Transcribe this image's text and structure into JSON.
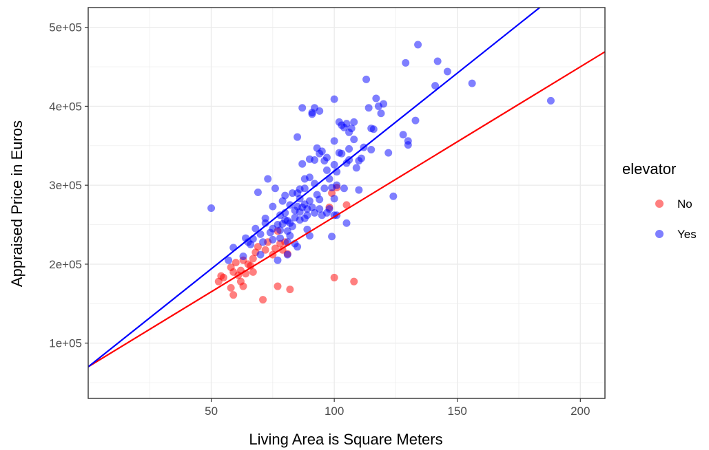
{
  "chart_data": {
    "type": "scatter",
    "title": "",
    "xlabel": "Living Area is Square Meters",
    "ylabel": "Appraised Price in Euros",
    "xlim": [
      0,
      210
    ],
    "ylim": [
      30000,
      525000
    ],
    "x_ticks": [
      50,
      100,
      150,
      200
    ],
    "x_tick_labels": [
      "50",
      "100",
      "150",
      "200"
    ],
    "x_minor_ticks": [
      25,
      75,
      125,
      175
    ],
    "y_ticks": [
      100000,
      200000,
      300000,
      400000,
      500000
    ],
    "y_tick_labels": [
      "1e+05",
      "2e+05",
      "3e+05",
      "4e+05",
      "5e+05"
    ],
    "y_minor_ticks": [
      50000,
      150000,
      250000,
      350000,
      450000
    ],
    "grid": true,
    "legend": {
      "title": "elevator",
      "position": "right",
      "entries": [
        {
          "label": "No",
          "color": "#ff0000"
        },
        {
          "label": "Yes",
          "color": "#0000ff"
        }
      ]
    },
    "series": [
      {
        "name": "No",
        "color": "#ff0000",
        "points": [
          [
            53,
            178000
          ],
          [
            54,
            185000
          ],
          [
            55,
            183000
          ],
          [
            58,
            170000
          ],
          [
            58,
            196000
          ],
          [
            59,
            161000
          ],
          [
            59,
            190000
          ],
          [
            60,
            202000
          ],
          [
            61,
            186000
          ],
          [
            62,
            192000
          ],
          [
            62,
            178000
          ],
          [
            63,
            172000
          ],
          [
            63,
            205000
          ],
          [
            64,
            188000
          ],
          [
            65,
            200000
          ],
          [
            66,
            198000
          ],
          [
            67,
            190000
          ],
          [
            67,
            207000
          ],
          [
            68,
            215000
          ],
          [
            69,
            222000
          ],
          [
            71,
            155000
          ],
          [
            72,
            218000
          ],
          [
            73,
            228000
          ],
          [
            75,
            212000
          ],
          [
            76,
            220000
          ],
          [
            77,
            172000
          ],
          [
            77,
            242000
          ],
          [
            78,
            226000
          ],
          [
            79,
            218000
          ],
          [
            80,
            228000
          ],
          [
            81,
            213000
          ],
          [
            82,
            168000
          ],
          [
            98,
            272000
          ],
          [
            99,
            290000
          ],
          [
            100,
            183000
          ],
          [
            101,
            297000
          ],
          [
            105,
            275000
          ],
          [
            108,
            178000
          ]
        ]
      },
      {
        "name": "Yes",
        "color": "#0000ff",
        "points": [
          [
            50,
            271000
          ],
          [
            57,
            205000
          ],
          [
            59,
            221000
          ],
          [
            63,
            210000
          ],
          [
            64,
            233000
          ],
          [
            65,
            228000
          ],
          [
            66,
            225000
          ],
          [
            67,
            232000
          ],
          [
            68,
            245000
          ],
          [
            69,
            291000
          ],
          [
            70,
            238000
          ],
          [
            70,
            212000
          ],
          [
            71,
            228000
          ],
          [
            72,
            252000
          ],
          [
            72,
            258000
          ],
          [
            73,
            308000
          ],
          [
            74,
            240000
          ],
          [
            75,
            231000
          ],
          [
            75,
            245000
          ],
          [
            75,
            273000
          ],
          [
            76,
            296000
          ],
          [
            77,
            205000
          ],
          [
            77,
            250000
          ],
          [
            78,
            243000
          ],
          [
            78,
            233000
          ],
          [
            78,
            262000
          ],
          [
            79,
            251000
          ],
          [
            79,
            280000
          ],
          [
            80,
            256000
          ],
          [
            80,
            265000
          ],
          [
            80,
            287000
          ],
          [
            81,
            242000
          ],
          [
            81,
            255000
          ],
          [
            81,
            212000
          ],
          [
            81,
            228000
          ],
          [
            82,
            275000
          ],
          [
            82,
            252000
          ],
          [
            82,
            236000
          ],
          [
            83,
            290000
          ],
          [
            83,
            248000
          ],
          [
            84,
            268000
          ],
          [
            84,
            259000
          ],
          [
            84,
            226000
          ],
          [
            85,
            273000
          ],
          [
            85,
            290000
          ],
          [
            85,
            222000
          ],
          [
            85,
            361000
          ],
          [
            86,
            256000
          ],
          [
            86,
            266000
          ],
          [
            86,
            283000
          ],
          [
            86,
            295000
          ],
          [
            87,
            272000
          ],
          [
            87,
            327000
          ],
          [
            87,
            398000
          ],
          [
            88,
            258000
          ],
          [
            88,
            276000
          ],
          [
            88,
            296000
          ],
          [
            88,
            308000
          ],
          [
            89,
            262000
          ],
          [
            89,
            244000
          ],
          [
            89,
            270000
          ],
          [
            90,
            236000
          ],
          [
            90,
            280000
          ],
          [
            90,
            310000
          ],
          [
            90,
            333000
          ],
          [
            91,
            390000
          ],
          [
            91,
            392000
          ],
          [
            91,
            272000
          ],
          [
            92,
            398000
          ],
          [
            92,
            265000
          ],
          [
            92,
            302000
          ],
          [
            92,
            332000
          ],
          [
            93,
            288000
          ],
          [
            93,
            347000
          ],
          [
            94,
            394000
          ],
          [
            94,
            340000
          ],
          [
            94,
            282000
          ],
          [
            94,
            270000
          ],
          [
            95,
            262000
          ],
          [
            95,
            343000
          ],
          [
            96,
            331000
          ],
          [
            96,
            296000
          ],
          [
            97,
            265000
          ],
          [
            97,
            319000
          ],
          [
            97,
            335000
          ],
          [
            98,
            270000
          ],
          [
            98,
            308000
          ],
          [
            99,
            297000
          ],
          [
            99,
            235000
          ],
          [
            100,
            283000
          ],
          [
            100,
            262000
          ],
          [
            100,
            326000
          ],
          [
            100,
            356000
          ],
          [
            100,
            409000
          ],
          [
            101,
            262000
          ],
          [
            101,
            300000
          ],
          [
            101,
            317000
          ],
          [
            102,
            341000
          ],
          [
            102,
            380000
          ],
          [
            103,
            340000
          ],
          [
            103,
            376000
          ],
          [
            104,
            373000
          ],
          [
            104,
            296000
          ],
          [
            105,
            252000
          ],
          [
            105,
            328000
          ],
          [
            105,
            378000
          ],
          [
            106,
            332000
          ],
          [
            106,
            346000
          ],
          [
            106,
            367000
          ],
          [
            107,
            372000
          ],
          [
            108,
            358000
          ],
          [
            108,
            380000
          ],
          [
            109,
            322000
          ],
          [
            110,
            294000
          ],
          [
            110,
            331000
          ],
          [
            111,
            334000
          ],
          [
            112,
            348000
          ],
          [
            113,
            434000
          ],
          [
            114,
            398000
          ],
          [
            115,
            345000
          ],
          [
            115,
            372000
          ],
          [
            116,
            371000
          ],
          [
            117,
            410000
          ],
          [
            118,
            400000
          ],
          [
            119,
            391000
          ],
          [
            120,
            403000
          ],
          [
            122,
            341000
          ],
          [
            124,
            286000
          ],
          [
            128,
            364000
          ],
          [
            129,
            455000
          ],
          [
            130,
            351000
          ],
          [
            130,
            356000
          ],
          [
            133,
            382000
          ],
          [
            134,
            478000
          ],
          [
            141,
            426000
          ],
          [
            142,
            457000
          ],
          [
            146,
            444000
          ],
          [
            156,
            429000
          ],
          [
            188,
            407000
          ]
        ]
      }
    ],
    "fit_lines": [
      {
        "series": "No",
        "color": "#ff0000",
        "intercept": 70000,
        "slope": 1900
      },
      {
        "series": "Yes",
        "color": "#0000ff",
        "intercept": 70000,
        "slope": 2480
      }
    ]
  }
}
